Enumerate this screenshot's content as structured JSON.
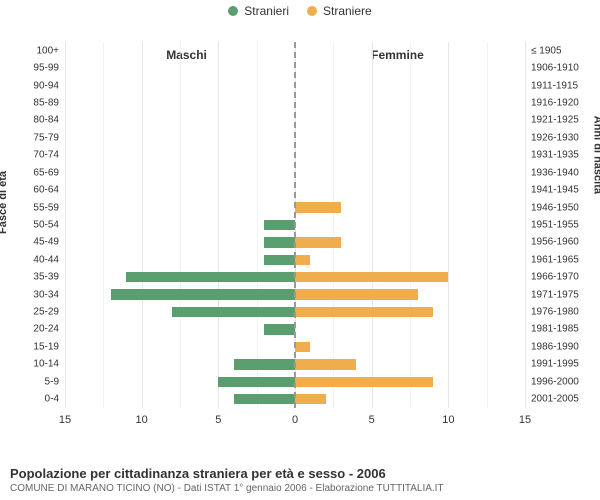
{
  "chart": {
    "type": "population-pyramid",
    "legend": [
      {
        "label": "Stranieri",
        "color": "#5a9e6f"
      },
      {
        "label": "Straniere",
        "color": "#f0ad4e"
      }
    ],
    "columns": {
      "left": "Maschi",
      "right": "Femmine"
    },
    "y_left_title": "Fasce di età",
    "y_right_title": "Anni di nascita",
    "xmax": 15,
    "xticks": [
      15,
      10,
      5,
      0,
      5,
      10,
      15
    ],
    "grid_minor": [
      2.5,
      7.5,
      12.5
    ],
    "bar_colors": {
      "male": "#5a9e6f",
      "female": "#f0ad4e"
    },
    "background": "#ffffff",
    "grid_color": "#e6e6e6",
    "rows": [
      {
        "age": "100+",
        "birth": "≤ 1905",
        "m": 0,
        "f": 0
      },
      {
        "age": "95-99",
        "birth": "1906-1910",
        "m": 0,
        "f": 0
      },
      {
        "age": "90-94",
        "birth": "1911-1915",
        "m": 0,
        "f": 0
      },
      {
        "age": "85-89",
        "birth": "1916-1920",
        "m": 0,
        "f": 0
      },
      {
        "age": "80-84",
        "birth": "1921-1925",
        "m": 0,
        "f": 0
      },
      {
        "age": "75-79",
        "birth": "1926-1930",
        "m": 0,
        "f": 0
      },
      {
        "age": "70-74",
        "birth": "1931-1935",
        "m": 0,
        "f": 0
      },
      {
        "age": "65-69",
        "birth": "1936-1940",
        "m": 0,
        "f": 0
      },
      {
        "age": "60-64",
        "birth": "1941-1945",
        "m": 0,
        "f": 0
      },
      {
        "age": "55-59",
        "birth": "1946-1950",
        "m": 0,
        "f": 3
      },
      {
        "age": "50-54",
        "birth": "1951-1955",
        "m": 2,
        "f": 0
      },
      {
        "age": "45-49",
        "birth": "1956-1960",
        "m": 2,
        "f": 3
      },
      {
        "age": "40-44",
        "birth": "1961-1965",
        "m": 2,
        "f": 1
      },
      {
        "age": "35-39",
        "birth": "1966-1970",
        "m": 11,
        "f": 10
      },
      {
        "age": "30-34",
        "birth": "1971-1975",
        "m": 12,
        "f": 8
      },
      {
        "age": "25-29",
        "birth": "1976-1980",
        "m": 8,
        "f": 9
      },
      {
        "age": "20-24",
        "birth": "1981-1985",
        "m": 2,
        "f": 0
      },
      {
        "age": "15-19",
        "birth": "1986-1990",
        "m": 0,
        "f": 1
      },
      {
        "age": "10-14",
        "birth": "1991-1995",
        "m": 4,
        "f": 4
      },
      {
        "age": "5-9",
        "birth": "1996-2000",
        "m": 5,
        "f": 9
      },
      {
        "age": "0-4",
        "birth": "2001-2005",
        "m": 4,
        "f": 2
      }
    ]
  },
  "footer": {
    "title": "Popolazione per cittadinanza straniera per età e sesso - 2006",
    "subtitle": "COMUNE DI MARANO TICINO (NO) - Dati ISTAT 1° gennaio 2006 - Elaborazione TUTTITALIA.IT"
  }
}
